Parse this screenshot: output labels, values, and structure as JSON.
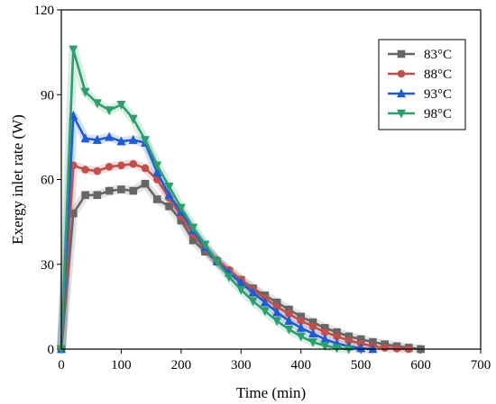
{
  "chart_data": {
    "type": "line",
    "xlabel": "Time (min)",
    "ylabel": "Exergy inlet rate (W)",
    "xlim": [
      0,
      700
    ],
    "ylim": [
      0,
      120
    ],
    "xticks": [
      0,
      100,
      200,
      300,
      400,
      500,
      600,
      700
    ],
    "yticks": [
      0,
      30,
      60,
      90,
      120
    ],
    "legend_position": "top-right",
    "series": [
      {
        "name": "83°C",
        "color": "#666666",
        "marker": "square",
        "x": [
          0,
          20,
          40,
          60,
          80,
          100,
          120,
          140,
          160,
          180,
          200,
          220,
          240,
          260,
          280,
          300,
          320,
          340,
          360,
          380,
          400,
          420,
          440,
          460,
          480,
          500,
          520,
          540,
          560,
          580,
          600
        ],
        "y": [
          0,
          48,
          54.5,
          54.5,
          56,
          56.5,
          56,
          58.5,
          53,
          50.5,
          45.5,
          38.5,
          34.5,
          31,
          27.5,
          24.5,
          21.5,
          19,
          16.5,
          14,
          11.5,
          9.5,
          7.5,
          6,
          4.5,
          3.5,
          2.5,
          1.7,
          1,
          0.5,
          0
        ]
      },
      {
        "name": "88°C",
        "color": "#c0504d",
        "marker": "circle",
        "x": [
          0,
          20,
          40,
          60,
          80,
          100,
          120,
          140,
          160,
          180,
          200,
          220,
          240,
          260,
          280,
          300,
          320,
          340,
          360,
          380,
          400,
          420,
          440,
          460,
          480,
          500,
          520,
          540,
          560,
          580
        ],
        "y": [
          0,
          65,
          63.5,
          63,
          64.5,
          65,
          65.5,
          64,
          60,
          53.5,
          47,
          40.5,
          35.5,
          31.5,
          28,
          24.5,
          21,
          18,
          15,
          12.5,
          10,
          8,
          6,
          4.5,
          3,
          2,
          1,
          0.5,
          0.2,
          0
        ]
      },
      {
        "name": "93°C",
        "color": "#1f5bd1",
        "marker": "triangle-up",
        "x": [
          0,
          20,
          40,
          60,
          80,
          100,
          120,
          140,
          160,
          180,
          200,
          220,
          240,
          260,
          280,
          300,
          320,
          340,
          360,
          380,
          400,
          420,
          440,
          460,
          480,
          500,
          520
        ],
        "y": [
          0,
          82.5,
          74.5,
          74,
          75,
          73.5,
          74,
          73,
          62.5,
          54.5,
          48.5,
          42,
          36,
          31,
          27,
          23.5,
          20,
          16.5,
          13,
          10,
          7.5,
          5.5,
          3.5,
          2,
          1,
          0.3,
          0
        ]
      },
      {
        "name": "98°C",
        "color": "#2e9e6e",
        "marker": "triangle-down",
        "x": [
          0,
          20,
          40,
          60,
          80,
          100,
          120,
          140,
          160,
          180,
          200,
          220,
          240,
          260,
          280,
          300,
          320,
          340,
          360,
          380,
          400,
          420,
          440,
          460,
          480
        ],
        "y": [
          0,
          106,
          91,
          87,
          84.5,
          86.5,
          81.5,
          74,
          65,
          57.5,
          50,
          43,
          37,
          31,
          25.5,
          21,
          17,
          13.5,
          10,
          7,
          4.5,
          2.5,
          1.2,
          0.4,
          0
        ]
      }
    ]
  }
}
